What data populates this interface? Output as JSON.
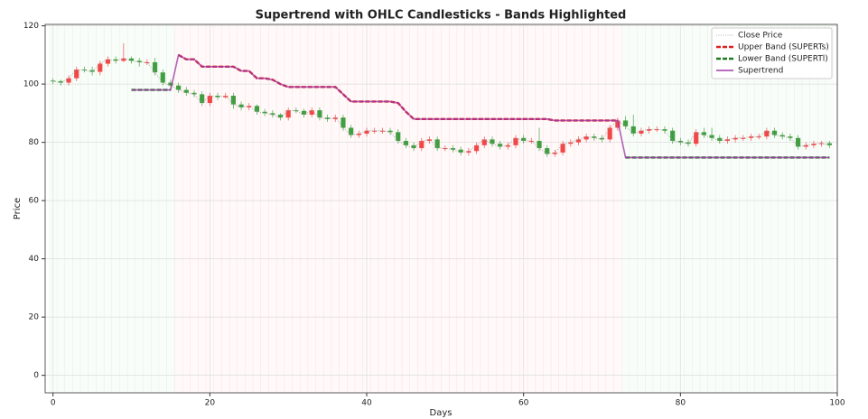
{
  "chart_data": {
    "type": "candlestick",
    "title": "Supertrend with OHLC Candlesticks - Bands Highlighted",
    "xlabel": "Days",
    "ylabel": "Price",
    "x": [
      0,
      1,
      2,
      3,
      4,
      5,
      6,
      7,
      8,
      9,
      10,
      11,
      12,
      13,
      14,
      15,
      16,
      17,
      18,
      19,
      20,
      21,
      22,
      23,
      24,
      25,
      26,
      27,
      28,
      29,
      30,
      31,
      32,
      33,
      34,
      35,
      36,
      37,
      38,
      39,
      40,
      41,
      42,
      43,
      44,
      45,
      46,
      47,
      48,
      49,
      50,
      51,
      52,
      53,
      54,
      55,
      56,
      57,
      58,
      59,
      60,
      61,
      62,
      63,
      64,
      65,
      66,
      67,
      68,
      69,
      70,
      71,
      72,
      73,
      74,
      75,
      76,
      77,
      78,
      79,
      80,
      81,
      82,
      83,
      84,
      85,
      86,
      87,
      88,
      89,
      90,
      91,
      92,
      93,
      94,
      95,
      96,
      97,
      98,
      99
    ],
    "open": [
      101.2,
      101,
      100.5,
      102,
      105,
      104.8,
      104.2,
      107,
      108.5,
      108,
      108.8,
      108,
      107.5,
      107.5,
      104,
      100.5,
      99.5,
      98,
      97,
      96.5,
      93.5,
      96,
      95.5,
      96,
      93,
      92,
      92.5,
      90.5,
      90,
      89.5,
      88.5,
      91,
      90.8,
      89.5,
      91,
      88.5,
      88,
      88.5,
      85,
      82.5,
      83,
      84,
      84,
      84,
      83.5,
      80.5,
      79,
      78,
      80.5,
      81,
      78,
      78,
      77.5,
      76.5,
      77,
      79,
      81,
      79.5,
      78.5,
      79,
      81.5,
      80.5,
      80.5,
      78,
      76,
      76.5,
      79.5,
      80,
      81,
      82,
      81.5,
      81,
      85,
      87.5,
      85.5,
      83,
      84,
      84.5,
      84.5,
      84,
      80.5,
      80,
      79.5,
      83.5,
      82.5,
      81.5,
      80.5,
      81,
      81.5,
      81.5,
      82,
      82,
      84,
      82.5,
      82,
      81.5,
      78.5,
      79,
      79.5,
      79.7
    ],
    "high": [
      102,
      101.5,
      103,
      106,
      106,
      106,
      108,
      109.5,
      109.5,
      114,
      109.5,
      109,
      108.5,
      109,
      105,
      101.5,
      100.5,
      99,
      98,
      97.5,
      97,
      97,
      97,
      97,
      94,
      93.5,
      93,
      91.5,
      91,
      90,
      92,
      92,
      91.5,
      92,
      92,
      89.5,
      89.5,
      89.5,
      86,
      84,
      85,
      85,
      85,
      85,
      84.5,
      81.5,
      80,
      81.5,
      82,
      82,
      79,
      79,
      78.5,
      78,
      80,
      82,
      82,
      80.5,
      80,
      82.5,
      82.5,
      81.5,
      85,
      79,
      77.5,
      80.5,
      81,
      82,
      83,
      83,
      82.5,
      86,
      88.5,
      89,
      89.5,
      85,
      85.5,
      85.5,
      85.5,
      85,
      81.5,
      81,
      84.5,
      85,
      85,
      82.5,
      82,
      82.5,
      82.5,
      83,
      83,
      85,
      85,
      83.5,
      83,
      82.5,
      80,
      80.5,
      80.5,
      80.5
    ],
    "low": [
      100,
      99.5,
      99.5,
      101,
      104,
      103,
      103,
      106,
      107,
      107.5,
      107,
      106,
      106.5,
      103,
      99.5,
      98.5,
      97,
      96,
      95.5,
      92.5,
      92.5,
      94.5,
      95,
      91.5,
      91,
      91,
      89.5,
      89,
      88.5,
      87.5,
      87.5,
      90,
      88.5,
      88.5,
      87.5,
      87,
      87,
      84,
      81.5,
      81.5,
      82,
      83,
      83,
      82.5,
      79.5,
      78,
      77,
      77,
      79.5,
      77,
      77,
      76.5,
      75.5,
      75.5,
      76,
      78,
      78.5,
      77.5,
      77.5,
      78,
      79.5,
      79.5,
      77,
      75,
      75,
      75.5,
      78.5,
      79,
      80,
      80.5,
      80,
      80,
      84,
      84.5,
      82,
      82,
      83,
      83.5,
      83,
      79.5,
      79,
      78.5,
      78.5,
      81.5,
      80.5,
      79.5,
      79.5,
      80,
      80.5,
      80.5,
      81,
      81,
      81.5,
      81,
      80.5,
      77.5,
      77.5,
      78,
      78.5,
      78
    ],
    "close": [
      101,
      100.5,
      102,
      105,
      104.8,
      104.2,
      107,
      108.5,
      108,
      108.8,
      108,
      107.5,
      107.5,
      104,
      100.5,
      99.5,
      98,
      97,
      96.5,
      93.5,
      96,
      95.5,
      96,
      93,
      92,
      92.5,
      90.5,
      90,
      89.5,
      88.5,
      91,
      90.8,
      89.5,
      91,
      88.5,
      88,
      88.5,
      85,
      82.5,
      83,
      84,
      84,
      84,
      83.5,
      80.5,
      79,
      78,
      80.5,
      81,
      78,
      78,
      77.5,
      76.5,
      77,
      79,
      81,
      79.5,
      78.5,
      79,
      81.5,
      80.5,
      80.5,
      78,
      76,
      76.5,
      79.5,
      80,
      81,
      82,
      81.5,
      81,
      85,
      87.5,
      85.5,
      83,
      84,
      84.5,
      84.5,
      84,
      80.5,
      80,
      79.5,
      83.5,
      82.5,
      81.5,
      80.5,
      81,
      81.5,
      81.5,
      82,
      82,
      84,
      82.5,
      82,
      81.5,
      78.5,
      79,
      79.5,
      79.7,
      79
    ],
    "up_color": "#f04040",
    "down_color": "#3a9a3a",
    "close_line": {
      "name": "Close Price",
      "color": "#9a9a9a"
    },
    "series": [
      {
        "name": "Upper Band (SUPERTs)",
        "color": "#e02020",
        "dash": "dashed",
        "values": [
          null,
          null,
          null,
          null,
          null,
          null,
          null,
          null,
          null,
          null,
          null,
          null,
          null,
          null,
          null,
          null,
          110,
          108.5,
          108.5,
          106,
          106,
          106,
          106,
          106,
          104.5,
          104.5,
          102,
          102,
          101.5,
          100,
          99,
          99,
          99,
          99,
          99,
          99,
          99,
          96.5,
          94,
          94,
          94,
          94,
          94,
          94,
          93.5,
          90.5,
          88,
          88,
          88,
          88,
          88,
          88,
          88,
          88,
          88,
          88,
          88,
          88,
          88,
          88,
          88,
          88,
          88,
          88,
          87.5,
          87.5,
          87.5,
          87.5,
          87.5,
          87.5,
          87.5,
          87.5,
          87.5,
          null,
          null,
          null,
          null,
          null,
          null,
          null,
          null,
          null,
          null,
          null,
          null,
          null,
          null,
          null,
          null,
          null,
          null,
          null,
          null,
          null,
          null,
          null,
          null,
          null,
          null,
          null
        ]
      },
      {
        "name": "Lower Band (SUPERTl)",
        "color": "#1e7a1e",
        "dash": "dashed",
        "values": [
          null,
          null,
          null,
          null,
          null,
          null,
          null,
          null,
          null,
          null,
          98,
          98,
          98,
          98,
          98,
          98,
          null,
          null,
          null,
          null,
          null,
          null,
          null,
          null,
          null,
          null,
          null,
          null,
          null,
          null,
          null,
          null,
          null,
          null,
          null,
          null,
          null,
          null,
          null,
          null,
          null,
          null,
          null,
          null,
          null,
          null,
          null,
          null,
          null,
          null,
          null,
          null,
          null,
          null,
          null,
          null,
          null,
          null,
          null,
          null,
          null,
          null,
          null,
          null,
          null,
          null,
          null,
          null,
          null,
          null,
          null,
          null,
          null,
          74.8,
          74.8,
          74.8,
          74.8,
          74.8,
          74.8,
          74.8,
          74.8,
          74.8,
          74.8,
          74.8,
          74.8,
          74.8,
          74.8,
          74.8,
          74.8,
          74.8,
          74.8,
          74.8,
          74.8,
          74.8,
          74.8,
          74.8,
          74.8,
          74.8,
          74.8,
          74.8
        ]
      },
      {
        "name": "Supertrend",
        "color": "#a03ca8",
        "dash": "solid",
        "values": [
          null,
          null,
          null,
          null,
          null,
          null,
          null,
          null,
          null,
          null,
          98,
          98,
          98,
          98,
          98,
          98,
          110,
          108.5,
          108.5,
          106,
          106,
          106,
          106,
          106,
          104.5,
          104.5,
          102,
          102,
          101.5,
          100,
          99,
          99,
          99,
          99,
          99,
          99,
          99,
          96.5,
          94,
          94,
          94,
          94,
          94,
          94,
          93.5,
          90.5,
          88,
          88,
          88,
          88,
          88,
          88,
          88,
          88,
          88,
          88,
          88,
          88,
          88,
          88,
          88,
          88,
          88,
          88,
          87.5,
          87.5,
          87.5,
          87.5,
          87.5,
          87.5,
          87.5,
          87.5,
          87.5,
          74.8,
          74.8,
          74.8,
          74.8,
          74.8,
          74.8,
          74.8,
          74.8,
          74.8,
          74.8,
          74.8,
          74.8,
          74.8,
          74.8,
          74.8,
          74.8,
          74.8,
          74.8,
          74.8,
          74.8,
          74.8,
          74.8,
          74.8,
          74.8,
          74.8,
          74.8,
          74.8
        ]
      }
    ],
    "xlim": [
      -1,
      100
    ],
    "ylim": [
      -6,
      120.5
    ],
    "xticks": [
      0,
      20,
      40,
      60,
      80,
      100
    ],
    "yticks": [
      0,
      20,
      40,
      60,
      80,
      100,
      120
    ],
    "grid": true,
    "legend": "upper right"
  }
}
